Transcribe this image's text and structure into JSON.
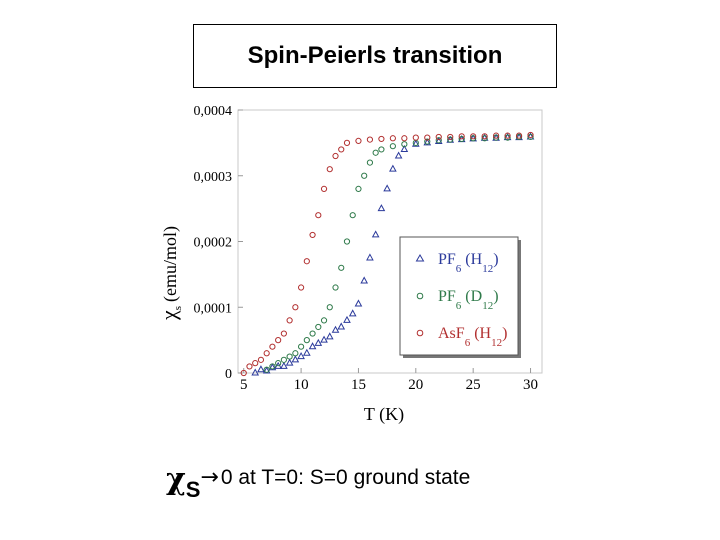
{
  "slide": {
    "title": "Spin-Peierls transition",
    "caption": {
      "chi": "χ",
      "sub": "S",
      "arrow": "→",
      "rest": "0 at T=0: S=0 ground state"
    }
  },
  "chart_data": {
    "type": "scatter",
    "title": "",
    "xlabel": "T (K)",
    "ylabel_symbol": "χ",
    "ylabel_sub": "s",
    "ylabel_unit": "(emu/mol)",
    "xlim": [
      4.5,
      31
    ],
    "ylim": [
      0,
      0.0004
    ],
    "xticks": [
      5,
      10,
      15,
      20,
      25,
      30
    ],
    "yticks": [
      0,
      0.0001,
      0.0002,
      0.0003,
      0.0004
    ],
    "ytick_labels": [
      "0",
      "0,0001",
      "0,0002",
      "0,0003",
      "0,0004"
    ],
    "grid": false,
    "legend_position": "lower-right",
    "series": [
      {
        "label_main": "PF",
        "label_sub1": "6",
        "label_mid": " (H",
        "label_sub2": "12",
        "label_end": ")",
        "marker": "triangle",
        "color": "#2b3a9b",
        "points": [
          [
            6,
            0.0
          ],
          [
            6.5,
            5e-06
          ],
          [
            7,
            3e-06
          ],
          [
            7.5,
            8e-06
          ],
          [
            8,
            1e-05
          ],
          [
            8.5,
            1e-05
          ],
          [
            9,
            1.5e-05
          ],
          [
            9.5,
            2e-05
          ],
          [
            10,
            2.5e-05
          ],
          [
            10.5,
            3e-05
          ],
          [
            11,
            4e-05
          ],
          [
            11.5,
            4.5e-05
          ],
          [
            12,
            5e-05
          ],
          [
            12.5,
            5.5e-05
          ],
          [
            13,
            6.5e-05
          ],
          [
            13.5,
            7e-05
          ],
          [
            14,
            8e-05
          ],
          [
            14.5,
            9e-05
          ],
          [
            15,
            0.000105
          ],
          [
            15.5,
            0.00014
          ],
          [
            16,
            0.000175
          ],
          [
            16.5,
            0.00021
          ],
          [
            17,
            0.00025
          ],
          [
            17.5,
            0.00028
          ],
          [
            18,
            0.00031
          ],
          [
            18.5,
            0.00033
          ],
          [
            19,
            0.00034
          ],
          [
            20,
            0.000348
          ],
          [
            21,
            0.00035
          ],
          [
            22,
            0.000352
          ],
          [
            23,
            0.000354
          ],
          [
            24,
            0.000355
          ],
          [
            25,
            0.000356
          ],
          [
            26,
            0.000357
          ],
          [
            27,
            0.000357
          ],
          [
            28,
            0.000358
          ],
          [
            29,
            0.000358
          ],
          [
            30,
            0.000359
          ]
        ]
      },
      {
        "label_main": "PF",
        "label_sub1": "6",
        "label_mid": " (D",
        "label_sub2": "12",
        "label_end": ")",
        "marker": "circle",
        "color": "#2f7a4a",
        "points": [
          [
            7,
            5e-06
          ],
          [
            7.5,
            1e-05
          ],
          [
            8,
            1.5e-05
          ],
          [
            8.5,
            2e-05
          ],
          [
            9,
            2.5e-05
          ],
          [
            9.5,
            3e-05
          ],
          [
            10,
            4e-05
          ],
          [
            10.5,
            5e-05
          ],
          [
            11,
            6e-05
          ],
          [
            11.5,
            7e-05
          ],
          [
            12,
            8e-05
          ],
          [
            12.5,
            0.0001
          ],
          [
            13,
            0.00013
          ],
          [
            13.5,
            0.00016
          ],
          [
            14,
            0.0002
          ],
          [
            14.5,
            0.00024
          ],
          [
            15,
            0.00028
          ],
          [
            15.5,
            0.0003
          ],
          [
            16,
            0.00032
          ],
          [
            16.5,
            0.000335
          ],
          [
            17,
            0.00034
          ],
          [
            18,
            0.000345
          ],
          [
            19,
            0.000348
          ],
          [
            20,
            0.00035
          ],
          [
            21,
            0.000352
          ],
          [
            22,
            0.000354
          ],
          [
            23,
            0.000355
          ],
          [
            24,
            0.000356
          ],
          [
            25,
            0.000357
          ],
          [
            26,
            0.000357
          ],
          [
            27,
            0.000358
          ],
          [
            28,
            0.000358
          ],
          [
            29,
            0.000359
          ],
          [
            30,
            0.000359
          ]
        ]
      },
      {
        "label_main": "AsF",
        "label_sub1": "6",
        "label_mid": " (H",
        "label_sub2": "12",
        "label_end": ")",
        "marker": "circle",
        "color": "#b23030",
        "points": [
          [
            5,
            0.0
          ],
          [
            5.5,
            1e-05
          ],
          [
            6,
            1.5e-05
          ],
          [
            6.5,
            2e-05
          ],
          [
            7,
            3e-05
          ],
          [
            7.5,
            4e-05
          ],
          [
            8,
            5e-05
          ],
          [
            8.5,
            6e-05
          ],
          [
            9,
            8e-05
          ],
          [
            9.5,
            0.0001
          ],
          [
            10,
            0.00013
          ],
          [
            10.5,
            0.00017
          ],
          [
            11,
            0.00021
          ],
          [
            11.5,
            0.00024
          ],
          [
            12,
            0.00028
          ],
          [
            12.5,
            0.00031
          ],
          [
            13,
            0.00033
          ],
          [
            13.5,
            0.00034
          ],
          [
            14,
            0.00035
          ],
          [
            15,
            0.000353
          ],
          [
            16,
            0.000355
          ],
          [
            17,
            0.000356
          ],
          [
            18,
            0.000357
          ],
          [
            19,
            0.000357
          ],
          [
            20,
            0.000358
          ],
          [
            21,
            0.000358
          ],
          [
            22,
            0.000359
          ],
          [
            23,
            0.000359
          ],
          [
            24,
            0.00036
          ],
          [
            25,
            0.00036
          ],
          [
            26,
            0.00036
          ],
          [
            27,
            0.000361
          ],
          [
            28,
            0.000361
          ],
          [
            29,
            0.000361
          ],
          [
            30,
            0.000362
          ]
        ]
      }
    ]
  }
}
